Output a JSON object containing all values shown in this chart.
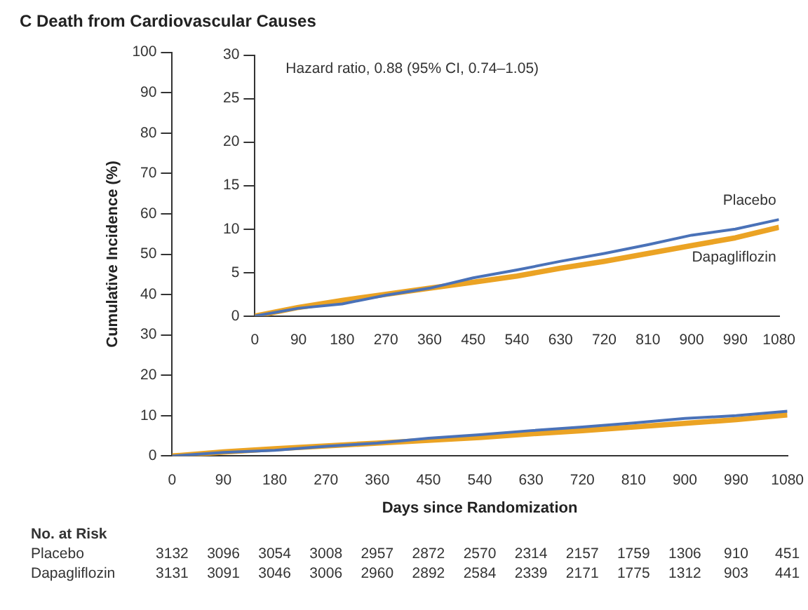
{
  "chart_data": [
    {
      "type": "line",
      "title": "C  Death from Cardiovascular Causes",
      "xlabel": "Days since Randomization",
      "ylabel": "Cumulative Incidence (%)",
      "x": [
        0,
        90,
        180,
        270,
        360,
        450,
        540,
        630,
        720,
        810,
        900,
        990,
        1080
      ],
      "series": [
        {
          "color": "#4a72b8",
          "values": [
            0,
            0.9,
            1.4,
            2.4,
            3.2,
            4.4,
            5.3,
            6.3,
            7.2,
            8.2,
            9.3,
            10.0,
            11.1
          ]
        },
        {
          "color": "#eba324",
          "values": [
            0,
            1.0,
            1.8,
            2.5,
            3.2,
            3.9,
            4.6,
            5.5,
            6.3,
            7.2,
            8.1,
            9.0,
            10.2
          ]
        }
      ],
      "xlim": [
        0,
        1080
      ],
      "xticks": [
        0,
        90,
        180,
        270,
        360,
        450,
        540,
        630,
        720,
        810,
        900,
        990,
        1080
      ],
      "ylim": [
        0,
        100
      ],
      "yticks": [
        0,
        10,
        20,
        30,
        40,
        50,
        60,
        70,
        80,
        90,
        100
      ],
      "grid": false,
      "legend": false,
      "marker": "none",
      "line_style": "solid",
      "annotations": [
        "No. at Risk",
        "Placebo 3132 3096 3054 3008 2957 2872 2570 2314 2157 1759 1306 910 451",
        "Dapagliflozin 3131 3091 3046 3006 2960 2892 2584 2339 2171 1775 1312 903 441"
      ]
    },
    {
      "type": "line",
      "x": [
        0,
        90,
        180,
        270,
        360,
        450,
        540,
        630,
        720,
        810,
        900,
        990,
        1080
      ],
      "series": [
        {
          "name": "Placebo",
          "color": "#4a72b8",
          "values": [
            0,
            0.9,
            1.4,
            2.4,
            3.2,
            4.4,
            5.3,
            6.3,
            7.2,
            8.2,
            9.3,
            10.0,
            11.1
          ]
        },
        {
          "name": "Dapagliflozin",
          "color": "#eba324",
          "values": [
            0,
            1.0,
            1.8,
            2.5,
            3.2,
            3.9,
            4.6,
            5.5,
            6.3,
            7.2,
            8.1,
            9.0,
            10.2
          ]
        }
      ],
      "xlim": [
        0,
        1080
      ],
      "xticks": [
        0,
        90,
        180,
        270,
        360,
        450,
        540,
        630,
        720,
        810,
        900,
        990,
        1080
      ],
      "ylim": [
        0,
        30
      ],
      "yticks": [
        0,
        5,
        10,
        15,
        20,
        25,
        30
      ],
      "grid": false,
      "legend": false,
      "marker": "none",
      "line_style": "solid",
      "annotations": [
        "Hazard ratio, 0.88 (95% CI, 0.74–1.05)"
      ]
    }
  ]
}
